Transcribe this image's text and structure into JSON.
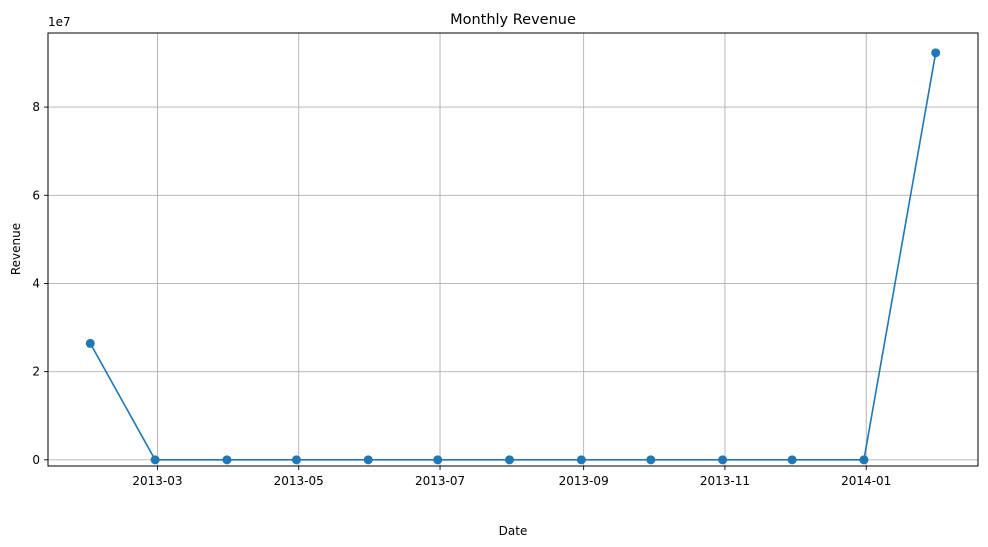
{
  "chart_data": {
    "type": "line",
    "title": "Monthly Revenue",
    "xlabel": "Date",
    "ylabel": "Revenue",
    "y_offset_label": "1e7",
    "x_ticks": [
      "2013-03",
      "2013-05",
      "2013-07",
      "2013-09",
      "2013-11",
      "2014-01"
    ],
    "y_ticks": [
      "0",
      "2",
      "4",
      "6",
      "8"
    ],
    "ylim": [
      -1400000,
      96800000
    ],
    "grid": true,
    "series": [
      {
        "color": "#1f77b4",
        "marker": "circle",
        "points": [
          {
            "x": "2013-01-31",
            "y": 26400000
          },
          {
            "x": "2013-02-28",
            "y": 0
          },
          {
            "x": "2013-03-31",
            "y": 0
          },
          {
            "x": "2013-04-30",
            "y": 0
          },
          {
            "x": "2013-05-31",
            "y": 0
          },
          {
            "x": "2013-06-30",
            "y": 0
          },
          {
            "x": "2013-07-31",
            "y": 0
          },
          {
            "x": "2013-08-31",
            "y": 0
          },
          {
            "x": "2013-09-30",
            "y": 0
          },
          {
            "x": "2013-10-31",
            "y": 0
          },
          {
            "x": "2013-11-30",
            "y": 0
          },
          {
            "x": "2013-12-31",
            "y": 0
          },
          {
            "x": "2014-01-31",
            "y": 92300000
          }
        ]
      }
    ]
  }
}
